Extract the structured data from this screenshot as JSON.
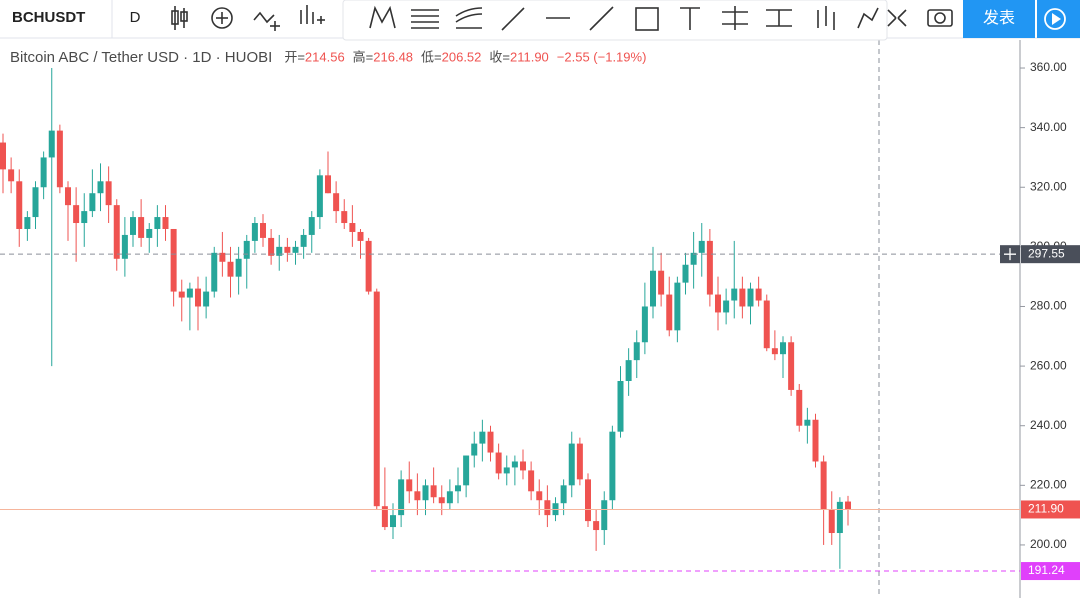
{
  "toolbar": {
    "symbol": "BCHUSDT",
    "interval": "D",
    "publish": "发表"
  },
  "chart_data": {
    "type": "candlestick",
    "title": "Bitcoin ABC / Tether USD · 1D · HUOBI",
    "legend": [
      {
        "label": "开=",
        "value": "214.56"
      },
      {
        "label": "高=",
        "value": "216.48"
      },
      {
        "label": "低=",
        "value": "206.52"
      },
      {
        "label": "收=",
        "value": "211.90"
      }
    ],
    "change": "−2.55 (−1.19%)",
    "up_color": "#26a69a",
    "down_color": "#ef5350",
    "open": [
      335,
      326,
      322,
      306,
      310,
      320,
      330,
      339,
      320,
      314,
      308,
      312,
      318,
      322,
      314,
      296,
      304,
      310,
      303,
      306,
      310,
      306,
      285,
      283,
      286,
      280,
      285,
      298,
      295,
      290,
      296,
      302,
      308,
      303,
      297,
      300,
      298,
      300,
      304,
      310,
      324,
      318,
      312,
      308,
      305,
      302,
      285,
      213,
      206,
      210,
      222,
      218,
      215,
      220,
      216,
      214,
      218,
      220,
      230,
      234,
      238,
      231,
      224,
      226,
      228,
      225,
      218,
      215,
      210,
      214,
      220,
      234,
      222,
      208,
      205,
      215,
      238,
      255,
      262,
      268,
      280,
      292,
      284,
      272,
      288,
      294,
      298,
      302,
      284,
      278,
      282,
      286,
      280,
      286,
      282,
      266,
      264,
      268,
      252,
      240,
      242,
      228,
      212,
      204,
      214.56
    ],
    "high": [
      338,
      330,
      326,
      312,
      322,
      332,
      360,
      341,
      322,
      320,
      318,
      326,
      328,
      327,
      316,
      310,
      312,
      316,
      308,
      314,
      314,
      306,
      289,
      288,
      290,
      290,
      300,
      305,
      300,
      300,
      304,
      310,
      311,
      306,
      304,
      303,
      302,
      306,
      312,
      326,
      332,
      322,
      316,
      314,
      306,
      303,
      286,
      226,
      214,
      225,
      228,
      224,
      222,
      226,
      220,
      222,
      226,
      230,
      238,
      242,
      240,
      234,
      230,
      230,
      232,
      228,
      222,
      220,
      216,
      222,
      238,
      236,
      224,
      212,
      218,
      240,
      260,
      266,
      272,
      288,
      300,
      298,
      290,
      290,
      298,
      305,
      308,
      306,
      290,
      286,
      302,
      290,
      288,
      290,
      284,
      272,
      270,
      270,
      254,
      246,
      244,
      230,
      218,
      216,
      216.48
    ],
    "low": [
      318,
      318,
      300,
      302,
      306,
      316,
      260,
      318,
      302,
      295,
      300,
      310,
      312,
      308,
      292,
      290,
      300,
      300,
      298,
      300,
      302,
      280,
      275,
      272,
      272,
      276,
      283,
      290,
      283,
      284,
      286,
      298,
      300,
      294,
      292,
      295,
      294,
      296,
      298,
      306,
      318,
      308,
      306,
      300,
      296,
      284,
      212,
      205,
      202,
      206,
      214,
      210,
      210,
      214,
      210,
      212,
      214,
      216,
      226,
      228,
      228,
      222,
      220,
      220,
      222,
      215,
      210,
      206,
      208,
      210,
      216,
      220,
      206,
      198,
      200,
      212,
      236,
      250,
      256,
      264,
      276,
      280,
      270,
      268,
      284,
      286,
      290,
      280,
      272,
      274,
      276,
      276,
      274,
      280,
      265,
      262,
      256,
      250,
      238,
      234,
      226,
      200,
      200,
      192,
      206.52
    ],
    "close": [
      326,
      322,
      306,
      310,
      320,
      330,
      339,
      320,
      314,
      308,
      312,
      318,
      322,
      314,
      296,
      304,
      310,
      303,
      306,
      310,
      306,
      285,
      283,
      286,
      280,
      285,
      298,
      295,
      290,
      296,
      302,
      308,
      303,
      297,
      300,
      298,
      300,
      304,
      310,
      324,
      318,
      312,
      308,
      305,
      302,
      285,
      213,
      206,
      210,
      222,
      218,
      215,
      220,
      216,
      214,
      218,
      220,
      230,
      234,
      238,
      231,
      224,
      226,
      228,
      225,
      218,
      215,
      210,
      214,
      220,
      234,
      222,
      208,
      205,
      215,
      238,
      255,
      262,
      268,
      280,
      292,
      284,
      272,
      288,
      294,
      298,
      302,
      284,
      278,
      282,
      286,
      280,
      286,
      282,
      266,
      264,
      268,
      252,
      240,
      242,
      228,
      212,
      204,
      214.45,
      211.9
    ],
    "ylim": [
      182.2,
      369.4
    ],
    "yticks": [
      {
        "value": 200,
        "label": "200.00"
      },
      {
        "value": 220,
        "label": "220.00"
      },
      {
        "value": 240,
        "label": "240.00"
      },
      {
        "value": 260,
        "label": "260.00"
      },
      {
        "value": 280,
        "label": "280.00"
      },
      {
        "value": 300,
        "label": "300.00"
      },
      {
        "value": 320,
        "label": "320.00"
      },
      {
        "value": 340,
        "label": "340.00"
      },
      {
        "value": 360,
        "label": "360.00"
      }
    ],
    "price_lines": [
      {
        "value": 297.55,
        "label": "297.55",
        "color": "#4a4f5a",
        "line": "#8a8f99"
      },
      {
        "value": 211.9,
        "label": "211.90",
        "color": "#ef5350",
        "line": "#f6b59c"
      },
      {
        "value": 191.24,
        "label": "191.24",
        "color": "#e040fb",
        "line": "#e040fb"
      }
    ]
  }
}
